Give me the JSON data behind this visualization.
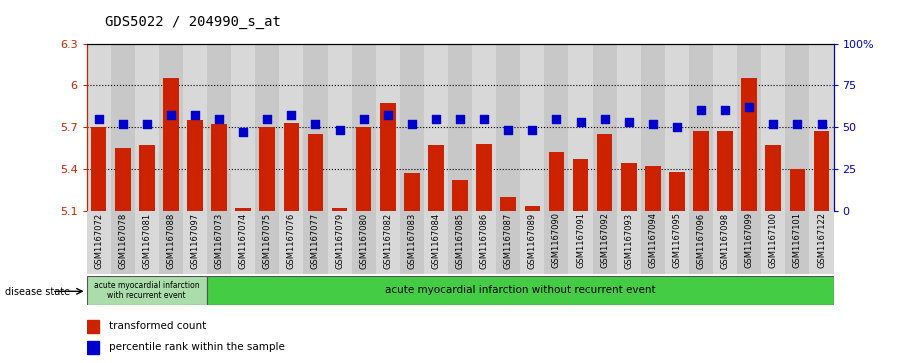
{
  "title": "GDS5022 / 204990_s_at",
  "samples": [
    "GSM1167072",
    "GSM1167078",
    "GSM1167081",
    "GSM1167088",
    "GSM1167097",
    "GSM1167073",
    "GSM1167074",
    "GSM1167075",
    "GSM1167076",
    "GSM1167077",
    "GSM1167079",
    "GSM1167080",
    "GSM1167082",
    "GSM1167083",
    "GSM1167084",
    "GSM1167085",
    "GSM1167086",
    "GSM1167087",
    "GSM1167089",
    "GSM1167090",
    "GSM1167091",
    "GSM1167092",
    "GSM1167093",
    "GSM1167094",
    "GSM1167095",
    "GSM1167096",
    "GSM1167098",
    "GSM1167099",
    "GSM1167100",
    "GSM1167101",
    "GSM1167122"
  ],
  "red_values": [
    5.7,
    5.55,
    5.57,
    6.05,
    5.75,
    5.72,
    5.12,
    5.7,
    5.73,
    5.65,
    5.12,
    5.7,
    5.87,
    5.37,
    5.57,
    5.32,
    5.58,
    5.2,
    5.13,
    5.52,
    5.47,
    5.65,
    5.44,
    5.42,
    5.38,
    5.67,
    5.67,
    6.05,
    5.57,
    5.4,
    5.67
  ],
  "blue_values": [
    55,
    52,
    52,
    57,
    57,
    55,
    47,
    55,
    57,
    52,
    48,
    55,
    57,
    52,
    55,
    55,
    55,
    48,
    48,
    55,
    53,
    55,
    53,
    52,
    50,
    60,
    60,
    62,
    52,
    52,
    52
  ],
  "y_min": 5.1,
  "y_max": 6.3,
  "y_ticks_red": [
    5.1,
    5.4,
    5.7,
    6.0,
    6.3
  ],
  "y_ticks_blue": [
    0,
    25,
    50,
    75,
    100
  ],
  "bar_color": "#cc2200",
  "dot_color": "#0000cc",
  "group1_count": 5,
  "group1_label": "acute myocardial infarction\nwith recurrent event",
  "group2_label": "acute myocardial infarction without recurrent event",
  "group1_color": "#aaddaa",
  "group2_color": "#44cc44",
  "disease_state_label": "disease state",
  "legend_red": "transformed count",
  "legend_blue": "percentile rank within the sample",
  "col_bg_even": "#d8d8d8",
  "col_bg_odd": "#c8c8c8"
}
